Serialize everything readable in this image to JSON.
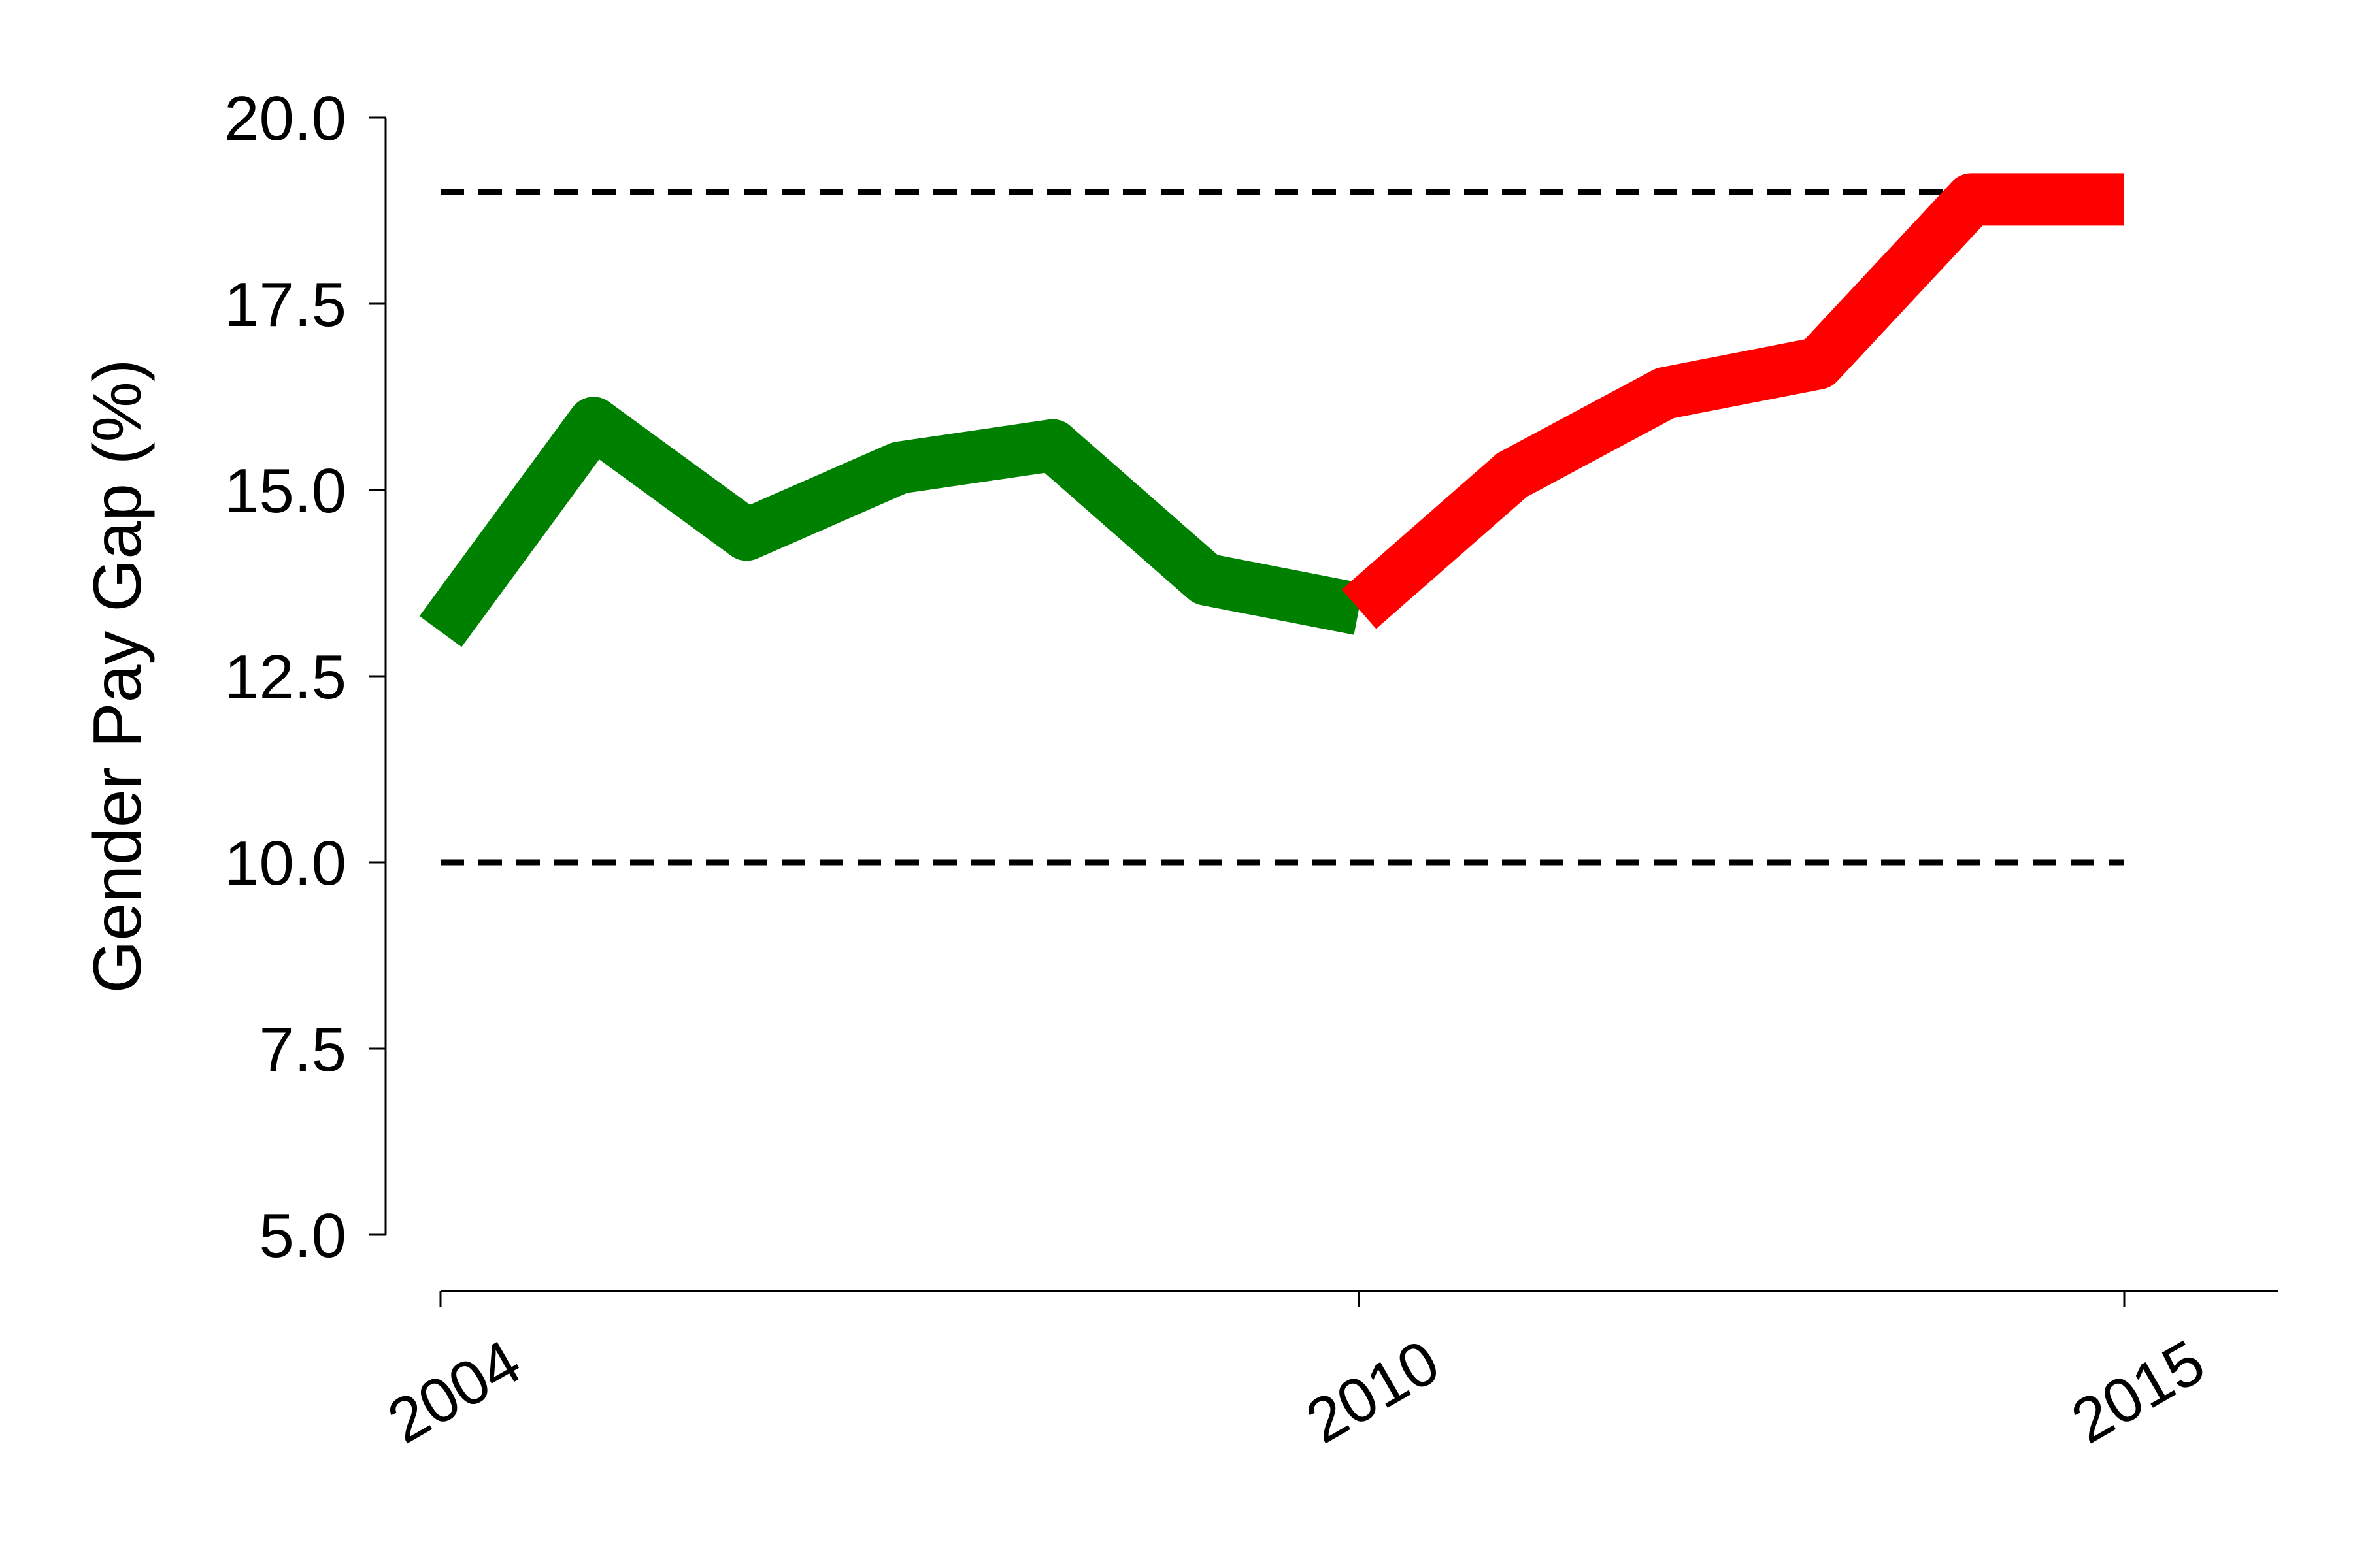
{
  "chart_data": {
    "type": "line",
    "title": "",
    "xlabel": "",
    "ylabel": "Gender Pay Gap (%)",
    "xlim": [
      2004,
      2016
    ],
    "ylim": [
      5.0,
      20.0
    ],
    "x_ticks": [
      2004,
      2010,
      2015
    ],
    "x_tick_labels": [
      "2004",
      "2010",
      "2015"
    ],
    "y_ticks": [
      5.0,
      7.5,
      10.0,
      12.5,
      15.0,
      17.5,
      20.0
    ],
    "y_tick_labels": [
      "5.0",
      "7.5",
      "10.0",
      "12.5",
      "15.0",
      "17.5",
      "20.0"
    ],
    "grid": false,
    "series": [
      {
        "color": "#008000",
        "x": [
          2004,
          2005,
          2006,
          2007,
          2008,
          2009,
          2010
        ],
        "values": [
          13.1,
          15.9,
          14.4,
          15.3,
          15.6,
          13.8,
          13.4
        ]
      },
      {
        "color": "#ff0000",
        "x": [
          2010,
          2011,
          2012,
          2013,
          2014,
          2015
        ],
        "values": [
          13.4,
          15.2,
          16.3,
          16.7,
          18.9,
          18.9
        ]
      }
    ],
    "reference_lines": [
      {
        "y": 19.0,
        "style": "dashed",
        "color": "#000000",
        "x": [
          2004,
          2015
        ]
      },
      {
        "y": 10.0,
        "style": "dashed",
        "color": "#000000",
        "x": [
          2004,
          2015
        ]
      }
    ]
  }
}
